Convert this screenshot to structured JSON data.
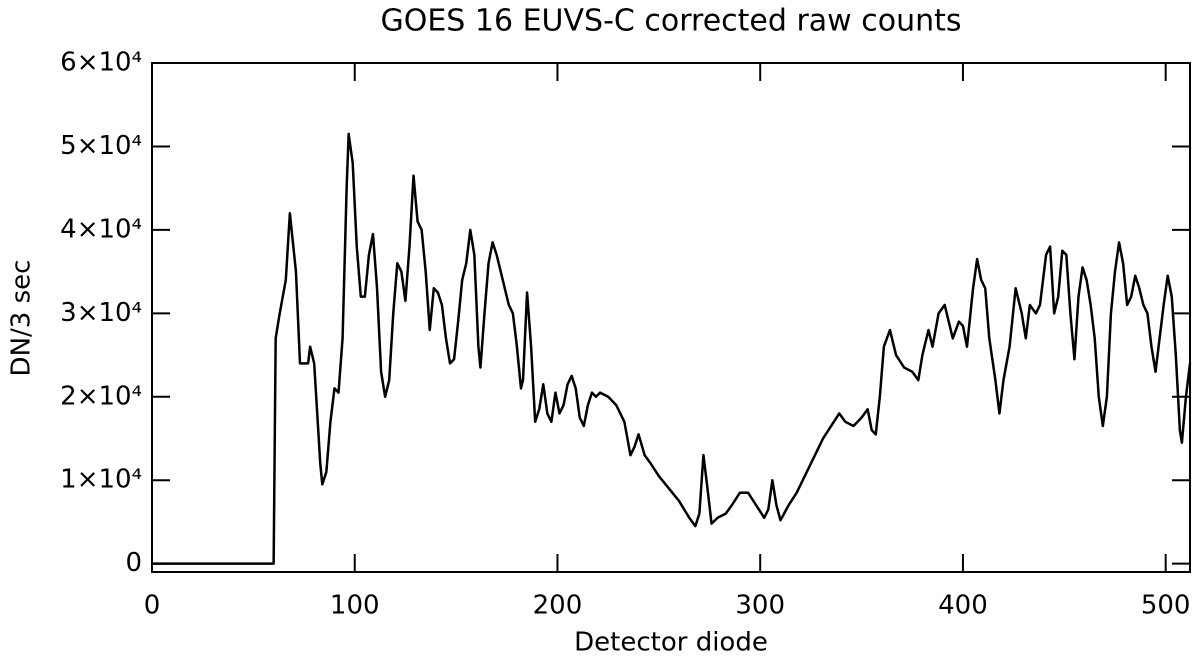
{
  "chart_data": {
    "type": "line",
    "title": "GOES 16 EUVS-C corrected raw counts",
    "x_label": "Detector diode",
    "y_label": "DN/3 sec",
    "xlim": [
      0,
      512
    ],
    "ylim": [
      -1000,
      60000
    ],
    "xticks": [
      0,
      100,
      200,
      300,
      400,
      500
    ],
    "yticks": [
      0,
      {
        "value": 10000,
        "label": "1×10⁴"
      },
      {
        "value": 20000,
        "label": "2×10⁴"
      },
      {
        "value": 30000,
        "label": "3×10⁴"
      },
      {
        "value": 40000,
        "label": "4×10⁴"
      },
      {
        "value": 50000,
        "label": "5×10⁴"
      },
      {
        "value": 60000,
        "label": "6×10⁴"
      }
    ],
    "grid": false,
    "series": [
      {
        "color": "#000000",
        "x": [
          0,
          30,
          60,
          61,
          63,
          66,
          68,
          71,
          73,
          77,
          78,
          80,
          83,
          84,
          86,
          88,
          90,
          92,
          94,
          96,
          97,
          99,
          101,
          103,
          105,
          107,
          109,
          111,
          113,
          115,
          117,
          119,
          121,
          123,
          125,
          127,
          129,
          131,
          133,
          135,
          137,
          139,
          141,
          143,
          145,
          147,
          149,
          151,
          153,
          155,
          157,
          159,
          161,
          162,
          164,
          166,
          168,
          170,
          172,
          174,
          176,
          178,
          180,
          182,
          183,
          185,
          187,
          189,
          191,
          193,
          195,
          197,
          199,
          201,
          203,
          205,
          207,
          209,
          211,
          213,
          215,
          217,
          219,
          221,
          225,
          229,
          233,
          236,
          238,
          240,
          243,
          246,
          250,
          255,
          260,
          265,
          268,
          270,
          272,
          274,
          276,
          279,
          283,
          286,
          290,
          294,
          298,
          302,
          304,
          306,
          308,
          310,
          314,
          318,
          323,
          327,
          331,
          335,
          339,
          342,
          346,
          350,
          353,
          355,
          357,
          359,
          361,
          364,
          367,
          371,
          375,
          378,
          380,
          383,
          385,
          388,
          391,
          393,
          395,
          398,
          400,
          402,
          405,
          407,
          409,
          411,
          413,
          416,
          418,
          420,
          423,
          426,
          429,
          431,
          433,
          436,
          438,
          441,
          443,
          445,
          447,
          449,
          451,
          453,
          455,
          457,
          459,
          461,
          463,
          465,
          467,
          469,
          471,
          473,
          475,
          477,
          479,
          481,
          483,
          485,
          487,
          489,
          491,
          493,
          495,
          497,
          499,
          501,
          503,
          505,
          507,
          508,
          510,
          512
        ],
        "values": [
          0,
          0,
          0,
          27000,
          30000,
          34000,
          42000,
          35000,
          24000,
          24000,
          26000,
          24000,
          12000,
          9500,
          11000,
          17000,
          21000,
          20500,
          27000,
          45000,
          51500,
          48000,
          38000,
          32000,
          32000,
          37000,
          39500,
          33000,
          23000,
          20000,
          22000,
          30000,
          36000,
          35000,
          31500,
          38000,
          46500,
          41000,
          40000,
          35000,
          28000,
          33000,
          32500,
          31000,
          27000,
          24000,
          24500,
          29000,
          34000,
          36000,
          40000,
          37000,
          26000,
          23500,
          30000,
          36000,
          38500,
          37000,
          35000,
          33000,
          31000,
          30000,
          26000,
          21000,
          22000,
          32500,
          26000,
          17000,
          18500,
          21500,
          18000,
          17000,
          20500,
          18000,
          19000,
          21500,
          22500,
          21000,
          17500,
          16500,
          19000,
          20500,
          20000,
          20500,
          20000,
          19000,
          17000,
          13000,
          14000,
          15500,
          13000,
          12000,
          10500,
          9000,
          7500,
          5500,
          4500,
          6000,
          13000,
          9000,
          4800,
          5500,
          6000,
          7000,
          8500,
          8500,
          7000,
          5500,
          6500,
          10000,
          7000,
          5200,
          7000,
          8500,
          11000,
          13000,
          15000,
          16500,
          18000,
          17000,
          16500,
          17500,
          18500,
          16000,
          15500,
          20000,
          26000,
          28000,
          25000,
          23500,
          23000,
          22000,
          25000,
          28000,
          26000,
          30000,
          31000,
          29000,
          27000,
          29000,
          28500,
          26000,
          33000,
          36500,
          34000,
          33000,
          27000,
          22000,
          18000,
          22000,
          26000,
          33000,
          30000,
          27000,
          31000,
          30000,
          31000,
          37000,
          38000,
          30000,
          32000,
          37500,
          37000,
          30000,
          24500,
          32000,
          35500,
          34000,
          31000,
          27000,
          20000,
          16500,
          20000,
          30000,
          35000,
          38500,
          36000,
          31000,
          32000,
          34500,
          33000,
          31000,
          30000,
          26000,
          23000,
          27000,
          31000,
          34500,
          32000,
          25000,
          16000,
          14500,
          20000,
          24000
        ]
      }
    ]
  }
}
